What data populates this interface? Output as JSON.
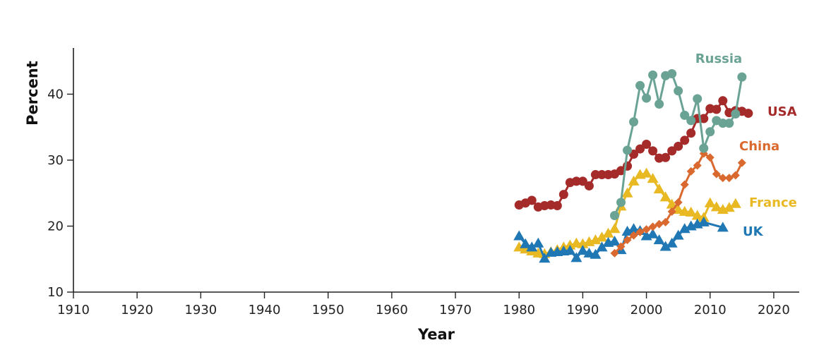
{
  "chart_data": {
    "type": "line",
    "title": "",
    "xlabel": "Year",
    "ylabel": "Percent",
    "xlim": [
      1910,
      2024
    ],
    "ylim": [
      10,
      47
    ],
    "xticks": [
      "1910",
      "1920",
      "1930",
      "1940",
      "1950",
      "1960",
      "1970",
      "1980",
      "1990",
      "2000",
      "2010",
      "2020"
    ],
    "yticks": [
      "10",
      "20",
      "30",
      "40"
    ],
    "grid": false,
    "legend": "direct labels at line ends",
    "series": [
      {
        "name": "Russia",
        "color": "#6aa394",
        "marker": "circle",
        "x": [
          1995,
          1996,
          1997,
          1998,
          1999,
          2000,
          2001,
          2002,
          2003,
          2004,
          2005,
          2006,
          2007,
          2008,
          2009,
          2010,
          2011,
          2012,
          2013,
          2014,
          2015
        ],
        "y": [
          21.6,
          23.6,
          31.5,
          35.8,
          41.3,
          39.4,
          42.9,
          38.5,
          42.8,
          43.1,
          40.5,
          36.8,
          36.0,
          39.3,
          31.8,
          34.3,
          36.0,
          35.6,
          35.6,
          37.0,
          42.6
        ]
      },
      {
        "name": "USA",
        "color": "#a52a2a",
        "marker": "circle",
        "x": [
          1980,
          1981,
          1982,
          1983,
          1984,
          1985,
          1986,
          1987,
          1988,
          1989,
          1990,
          1991,
          1992,
          1993,
          1994,
          1995,
          1996,
          1997,
          1998,
          1999,
          2000,
          2001,
          2002,
          2003,
          2004,
          2005,
          2006,
          2007,
          2008,
          2009,
          2010,
          2011,
          2012,
          2013,
          2014,
          2015,
          2016
        ],
        "y": [
          23.2,
          23.5,
          23.9,
          22.9,
          23.1,
          23.2,
          23.1,
          24.8,
          26.6,
          26.8,
          26.8,
          26.1,
          27.8,
          27.8,
          27.8,
          27.9,
          28.4,
          29.1,
          30.9,
          31.7,
          32.4,
          31.4,
          30.3,
          30.4,
          31.4,
          32.1,
          33.0,
          34.1,
          36.3,
          36.3,
          37.8,
          37.7,
          39.0,
          37.2,
          37.5,
          37.4,
          37.1
        ]
      },
      {
        "name": "China",
        "color": "#d9692e",
        "marker": "diamond",
        "x": [
          1995,
          1996,
          1997,
          1998,
          1999,
          2000,
          2001,
          2002,
          2003,
          2004,
          2005,
          2006,
          2007,
          2008,
          2009,
          2010,
          2011,
          2012,
          2013,
          2014,
          2015
        ],
        "y": [
          15.9,
          16.9,
          17.9,
          18.6,
          19.1,
          19.5,
          19.9,
          20.3,
          20.6,
          22.2,
          23.6,
          26.3,
          28.3,
          29.2,
          31.0,
          30.4,
          27.9,
          27.3,
          27.3,
          27.7,
          29.6
        ]
      },
      {
        "name": "France",
        "color": "#e8b923",
        "marker": "triangle",
        "x": [
          1980,
          1981,
          1982,
          1983,
          1984,
          1985,
          1986,
          1987,
          1988,
          1989,
          1990,
          1991,
          1992,
          1993,
          1994,
          1995,
          1996,
          1997,
          1998,
          1999,
          2000,
          2001,
          2002,
          2003,
          2004,
          2005,
          2006,
          2007,
          2008,
          2009,
          2010,
          2011,
          2012,
          2013,
          2014
        ],
        "y": [
          16.8,
          16.5,
          16.2,
          15.9,
          15.8,
          16.1,
          16.4,
          16.8,
          17.1,
          17.4,
          17.3,
          17.6,
          17.9,
          18.3,
          18.9,
          19.6,
          23.0,
          25.0,
          26.8,
          27.8,
          28.0,
          27.2,
          25.6,
          24.4,
          23.3,
          22.5,
          22.2,
          22.1,
          21.6,
          21.3,
          23.5,
          22.9,
          22.5,
          22.8,
          23.4
        ]
      },
      {
        "name": "UK",
        "color": "#1f77b4",
        "marker": "triangle",
        "x": [
          1980,
          1981,
          1982,
          1983,
          1984,
          1985,
          1986,
          1987,
          1988,
          1989,
          1990,
          1991,
          1992,
          1993,
          1994,
          1995,
          1996,
          1997,
          1998,
          1999,
          2000,
          2001,
          2002,
          2003,
          2004,
          2005,
          2006,
          2007,
          2008,
          2009,
          2012
        ],
        "y": [
          18.5,
          17.3,
          16.8,
          17.4,
          15.1,
          16.0,
          16.1,
          16.2,
          16.3,
          15.2,
          16.3,
          15.9,
          15.7,
          16.8,
          17.5,
          17.7,
          16.4,
          19.2,
          19.6,
          19.3,
          18.5,
          18.8,
          17.9,
          16.9,
          17.4,
          18.6,
          19.6,
          20.0,
          20.3,
          20.6,
          19.8
        ]
      }
    ]
  }
}
